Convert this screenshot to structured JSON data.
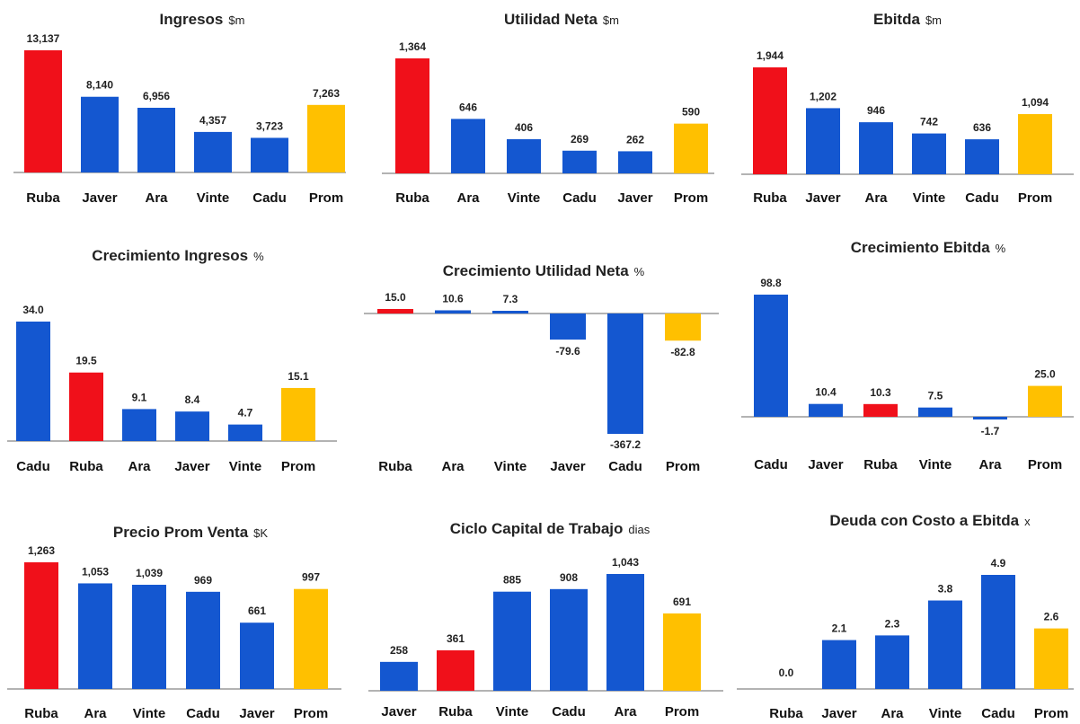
{
  "colors": {
    "highlight": "#f0101a",
    "default": "#1457d0",
    "average": "#ffc000",
    "axis": "#9a9a9a"
  },
  "chart_data": [
    {
      "type": "bar",
      "title": "Ingresos",
      "unit": "$m",
      "categories": [
        "Ruba",
        "Javer",
        "Ara",
        "Vinte",
        "Cadu",
        "Prom"
      ],
      "values": [
        13137,
        8140,
        6956,
        4357,
        3723,
        7263
      ],
      "labels": [
        "13,137",
        "8,140",
        "6,956",
        "4,357",
        "3,723",
        "7,263"
      ],
      "colors": [
        "highlight",
        "default",
        "default",
        "default",
        "default",
        "average"
      ]
    },
    {
      "type": "bar",
      "title": "Utilidad Neta",
      "unit": "$m",
      "categories": [
        "Ruba",
        "Ara",
        "Vinte",
        "Cadu",
        "Javer",
        "Prom"
      ],
      "values": [
        1364,
        646,
        406,
        269,
        262,
        590
      ],
      "labels": [
        "1,364",
        "646",
        "406",
        "269",
        "262",
        "590"
      ],
      "colors": [
        "highlight",
        "default",
        "default",
        "default",
        "default",
        "average"
      ]
    },
    {
      "type": "bar",
      "title": "Ebitda",
      "unit": "$m",
      "categories": [
        "Ruba",
        "Javer",
        "Ara",
        "Vinte",
        "Cadu",
        "Prom"
      ],
      "values": [
        1944,
        1202,
        946,
        742,
        636,
        1094
      ],
      "labels": [
        "1,944",
        "1,202",
        "946",
        "742",
        "636",
        "1,094"
      ],
      "colors": [
        "highlight",
        "default",
        "default",
        "default",
        "default",
        "average"
      ]
    },
    {
      "type": "bar",
      "title": "Crecimiento Ingresos",
      "unit": "%",
      "categories": [
        "Cadu",
        "Ruba",
        "Ara",
        "Javer",
        "Vinte",
        "Prom"
      ],
      "values": [
        34.0,
        19.5,
        9.1,
        8.4,
        4.7,
        15.1
      ],
      "labels": [
        "34.0",
        "19.5",
        "9.1",
        "8.4",
        "4.7",
        "15.1"
      ],
      "colors": [
        "default",
        "highlight",
        "default",
        "default",
        "default",
        "average"
      ]
    },
    {
      "type": "bar",
      "title": "Crecimiento Utilidad Neta",
      "unit": "%",
      "categories": [
        "Ruba",
        "Ara",
        "Vinte",
        "Javer",
        "Cadu",
        "Prom"
      ],
      "values": [
        15.0,
        10.6,
        7.3,
        -79.6,
        -367.2,
        -82.8
      ],
      "labels": [
        "15.0",
        "10.6",
        "7.3",
        "-79.6",
        "-367.2",
        "-82.8"
      ],
      "colors": [
        "highlight",
        "default",
        "default",
        "default",
        "default",
        "average"
      ]
    },
    {
      "type": "bar",
      "title": "Crecimiento Ebitda",
      "unit": "%",
      "categories": [
        "Cadu",
        "Javer",
        "Ruba",
        "Vinte",
        "Ara",
        "Prom"
      ],
      "values": [
        98.8,
        10.4,
        10.3,
        7.5,
        -1.7,
        25.0
      ],
      "labels": [
        "98.8",
        "10.4",
        "10.3",
        "7.5",
        "-1.7",
        "25.0"
      ],
      "colors": [
        "default",
        "default",
        "highlight",
        "default",
        "default",
        "average"
      ]
    },
    {
      "type": "bar",
      "title": "Precio Prom Venta",
      "unit": "$K",
      "categories": [
        "Ruba",
        "Ara",
        "Vinte",
        "Cadu",
        "Javer",
        "Prom"
      ],
      "values": [
        1263,
        1053,
        1039,
        969,
        661,
        997
      ],
      "labels": [
        "1,263",
        "1,053",
        "1,039",
        "969",
        "661",
        "997"
      ],
      "colors": [
        "highlight",
        "default",
        "default",
        "default",
        "default",
        "average"
      ]
    },
    {
      "type": "bar",
      "title": "Ciclo Capital de Trabajo",
      "unit": "dias",
      "categories": [
        "Javer",
        "Ruba",
        "Vinte",
        "Cadu",
        "Ara",
        "Prom"
      ],
      "values": [
        258,
        361,
        885,
        908,
        1043,
        691
      ],
      "labels": [
        "258",
        "361",
        "885",
        "908",
        "1,043",
        "691"
      ],
      "colors": [
        "default",
        "highlight",
        "default",
        "default",
        "default",
        "average"
      ]
    },
    {
      "type": "bar",
      "title": "Deuda con Costo a Ebitda",
      "unit": "x",
      "categories": [
        "Ruba",
        "Javer",
        "Ara",
        "Vinte",
        "Cadu",
        "Prom"
      ],
      "values": [
        0.0,
        2.1,
        2.3,
        3.8,
        4.9,
        2.6
      ],
      "labels": [
        "0.0",
        "2.1",
        "2.3",
        "3.8",
        "4.9",
        "2.6"
      ],
      "colors": [
        "highlight",
        "default",
        "default",
        "default",
        "default",
        "average"
      ]
    }
  ]
}
